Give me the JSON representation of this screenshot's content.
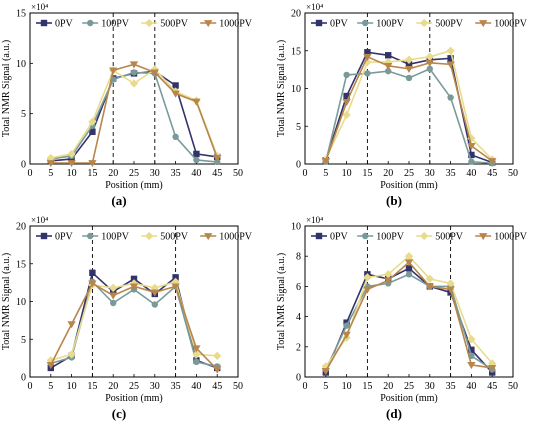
{
  "chart_data": [
    {
      "type": "line",
      "panel_label": "(a)",
      "xlabel": "Position (mm)",
      "ylabel": "Total NMR Signal (a.u.)",
      "exponent_label": "×10⁴",
      "xlim": [
        0,
        50
      ],
      "ylim": [
        0,
        15
      ],
      "xticks": [
        0,
        5,
        10,
        15,
        20,
        25,
        30,
        35,
        40,
        45,
        50
      ],
      "yticks": [
        0,
        5,
        10,
        15
      ],
      "dashed_x": [
        20,
        30
      ],
      "x": [
        5,
        10,
        15,
        20,
        25,
        30,
        35,
        40,
        45
      ],
      "series": [
        {
          "name": "0PV",
          "color": "#33336b",
          "marker": "square",
          "values": [
            0.3,
            0.5,
            3.2,
            8.5,
            9.0,
            9.2,
            7.8,
            1.0,
            0.7
          ]
        },
        {
          "name": "100PV",
          "color": "#7a9a9a",
          "marker": "circle",
          "values": [
            0.5,
            0.8,
            3.8,
            8.4,
            9.1,
            9.0,
            2.7,
            0.4,
            0.2
          ]
        },
        {
          "name": "500PV",
          "color": "#e8dc8c",
          "marker": "diamond",
          "values": [
            0.6,
            1.0,
            4.2,
            9.3,
            8.0,
            9.4,
            7.2,
            6.3,
            0.8
          ]
        },
        {
          "name": "1000PV",
          "color": "#b8854a",
          "marker": "triangle-down",
          "values": [
            0.1,
            0.1,
            0.1,
            9.3,
            9.9,
            9.1,
            7.0,
            6.2,
            0.6
          ]
        }
      ]
    },
    {
      "type": "line",
      "panel_label": "(b)",
      "xlabel": "Position (mm)",
      "ylabel": "Total NMR Signal (a.u.)",
      "exponent_label": "×10⁴",
      "xlim": [
        0,
        50
      ],
      "ylim": [
        0,
        20
      ],
      "xticks": [
        0,
        5,
        10,
        15,
        20,
        25,
        30,
        35,
        40,
        45,
        50
      ],
      "yticks": [
        0,
        5,
        10,
        15,
        20
      ],
      "dashed_x": [
        15,
        30
      ],
      "x": [
        5,
        10,
        15,
        20,
        25,
        30,
        35,
        40,
        45
      ],
      "series": [
        {
          "name": "0PV",
          "color": "#33336b",
          "marker": "square",
          "values": [
            0.5,
            9.0,
            14.8,
            14.4,
            13.2,
            13.8,
            14.0,
            1.2,
            0.2
          ]
        },
        {
          "name": "100PV",
          "color": "#7a9a9a",
          "marker": "circle",
          "values": [
            0.3,
            11.8,
            12.0,
            12.3,
            11.4,
            12.6,
            8.8,
            0.3,
            0.1
          ]
        },
        {
          "name": "500PV",
          "color": "#e8dc8c",
          "marker": "diamond",
          "values": [
            0.6,
            6.5,
            13.5,
            13.5,
            13.8,
            14.2,
            15.0,
            3.4,
            0.6
          ]
        },
        {
          "name": "1000PV",
          "color": "#b8854a",
          "marker": "triangle-down",
          "values": [
            0.4,
            8.2,
            14.2,
            13.0,
            12.6,
            13.4,
            13.2,
            2.4,
            0.4
          ]
        }
      ]
    },
    {
      "type": "line",
      "panel_label": "(c)",
      "xlabel": "Position (mm)",
      "ylabel": "Total NMR Signal (a.u.)",
      "exponent_label": "×10⁴",
      "xlim": [
        0,
        50
      ],
      "ylim": [
        0,
        20
      ],
      "xticks": [
        0,
        5,
        10,
        15,
        20,
        25,
        30,
        35,
        40,
        45,
        50
      ],
      "yticks": [
        0,
        5,
        10,
        15,
        20
      ],
      "dashed_x": [
        15,
        35
      ],
      "x": [
        5,
        10,
        15,
        20,
        25,
        30,
        35,
        40,
        45
      ],
      "series": [
        {
          "name": "0PV",
          "color": "#33336b",
          "marker": "square",
          "values": [
            1.2,
            2.8,
            13.8,
            11.3,
            13.0,
            11.0,
            13.2,
            2.2,
            1.2
          ]
        },
        {
          "name": "100PV",
          "color": "#7a9a9a",
          "marker": "circle",
          "values": [
            1.8,
            2.6,
            12.6,
            9.8,
            11.6,
            9.6,
            12.0,
            2.0,
            1.4
          ]
        },
        {
          "name": "500PV",
          "color": "#e8dc8c",
          "marker": "diamond",
          "values": [
            2.2,
            3.0,
            12.2,
            11.8,
            12.4,
            11.8,
            12.6,
            3.0,
            2.8
          ]
        },
        {
          "name": "1000PV",
          "color": "#b8854a",
          "marker": "triangle-down",
          "values": [
            1.6,
            7.0,
            12.4,
            10.8,
            12.0,
            11.2,
            12.0,
            3.8,
            1.0
          ]
        }
      ]
    },
    {
      "type": "line",
      "panel_label": "(d)",
      "xlabel": "Position (mm)",
      "ylabel": "Total NMR Signal (a.u.)",
      "exponent_label": "×10⁴",
      "xlim": [
        0,
        50
      ],
      "ylim": [
        0,
        10
      ],
      "xticks": [
        0,
        5,
        10,
        15,
        20,
        25,
        30,
        35,
        40,
        45,
        50
      ],
      "yticks": [
        0,
        2,
        4,
        6,
        8,
        10
      ],
      "dashed_x": [
        15,
        35
      ],
      "x": [
        5,
        10,
        15,
        20,
        25,
        30,
        35,
        40,
        45
      ],
      "series": [
        {
          "name": "0PV",
          "color": "#33336b",
          "marker": "square",
          "values": [
            0.3,
            3.6,
            6.8,
            6.5,
            7.2,
            6.0,
            5.6,
            1.8,
            0.3
          ]
        },
        {
          "name": "100PV",
          "color": "#7a9a9a",
          "marker": "circle",
          "values": [
            0.5,
            3.4,
            6.0,
            6.2,
            6.8,
            6.0,
            6.0,
            1.4,
            0.5
          ]
        },
        {
          "name": "500PV",
          "color": "#e8dc8c",
          "marker": "diamond",
          "values": [
            0.7,
            2.6,
            6.6,
            6.8,
            8.0,
            6.5,
            6.2,
            2.5,
            0.9
          ]
        },
        {
          "name": "1000PV",
          "color": "#b8854a",
          "marker": "triangle-down",
          "values": [
            0.4,
            2.8,
            5.8,
            6.4,
            7.6,
            6.0,
            5.8,
            0.8,
            0.6
          ]
        }
      ]
    }
  ]
}
